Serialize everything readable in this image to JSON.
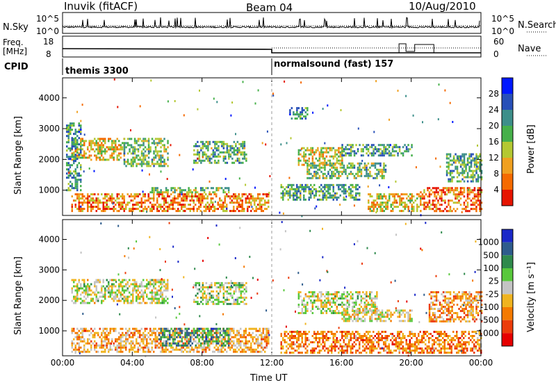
{
  "header": {
    "station": "Inuvik (fitACF)",
    "beam": "Beam 04",
    "date": "10/Aug/2010"
  },
  "strip_panels": {
    "nsky_label": "N.Sky",
    "nsky_ticks": [
      "10^5",
      "10^0"
    ],
    "nsearch_label": "N.Search",
    "nsearch_ticks": [
      "10^5",
      "10^0"
    ],
    "freq_label_1": "Freq.",
    "freq_label_2": "[MHz]",
    "freq_ticks": [
      "18",
      "8"
    ],
    "nave_label": "Nave",
    "nave_ticks": [
      "60",
      "0"
    ],
    "cpid_label": "CPID",
    "cpid_modes": [
      {
        "name": "themis 3300",
        "start_hour": 0
      },
      {
        "name": "normalsound (fast) 157",
        "start_hour": 12
      }
    ]
  },
  "chart_data": [
    {
      "type": "heatmap",
      "title": "",
      "quantity": "power",
      "xlabel": "",
      "ylabel": "Slant Range [km]",
      "xlim_hours": [
        0,
        24
      ],
      "ylim_km": [
        180,
        4650
      ],
      "y_ticks": [
        "1000",
        "2000",
        "3000",
        "4000"
      ],
      "x_ticks": [
        "00:00",
        "04:00",
        "08:00",
        "12:00",
        "16:00",
        "20:00",
        "00:00"
      ],
      "colorbar": {
        "label": "Power [dB]",
        "ticks": [
          "4",
          "8",
          "12",
          "16",
          "20",
          "24",
          "28"
        ],
        "colors": [
          "#0018ff",
          "#2850b8",
          "#3d8f8a",
          "#46b04a",
          "#b4c832",
          "#f0a020",
          "#f56a00",
          "#e61400"
        ]
      },
      "echo_regions": [
        {
          "t0": 0.5,
          "t1": 3.5,
          "r0": 2000,
          "r1": 2700,
          "level": 0.65
        },
        {
          "t0": 3.5,
          "t1": 6.0,
          "r0": 1800,
          "r1": 2700,
          "level": 0.45
        },
        {
          "t0": 0.2,
          "t1": 1.0,
          "r0": 1000,
          "r1": 3200,
          "level": 0.3
        },
        {
          "t0": 0.5,
          "t1": 11.8,
          "r0": 300,
          "r1": 900,
          "level": 0.8
        },
        {
          "t0": 5.0,
          "t1": 9.5,
          "r0": 900,
          "r1": 1100,
          "level": 0.45
        },
        {
          "t0": 7.5,
          "t1": 10.5,
          "r0": 1900,
          "r1": 2600,
          "level": 0.4
        },
        {
          "t0": 13.5,
          "t1": 16.0,
          "r0": 1800,
          "r1": 2400,
          "level": 0.6
        },
        {
          "t0": 14.0,
          "t1": 18.5,
          "r0": 1400,
          "r1": 1900,
          "level": 0.45
        },
        {
          "t0": 16.0,
          "t1": 20.0,
          "r0": 2100,
          "r1": 2500,
          "level": 0.35
        },
        {
          "t0": 12.5,
          "t1": 17.0,
          "r0": 700,
          "r1": 1200,
          "level": 0.4
        },
        {
          "t0": 17.5,
          "t1": 20.5,
          "r0": 300,
          "r1": 900,
          "level": 0.65
        },
        {
          "t0": 20.5,
          "t1": 24.0,
          "r0": 300,
          "r1": 1100,
          "level": 0.85
        },
        {
          "t0": 22.0,
          "t1": 24.0,
          "r0": 1300,
          "r1": 2200,
          "level": 0.4
        },
        {
          "t0": 13.0,
          "t1": 14.0,
          "r0": 3300,
          "r1": 3700,
          "level": 0.3
        }
      ]
    },
    {
      "type": "heatmap",
      "title": "",
      "quantity": "velocity",
      "xlabel": "Time UT",
      "ylabel": "Slant Range [km]",
      "xlim_hours": [
        0,
        24
      ],
      "ylim_km": [
        180,
        4650
      ],
      "y_ticks": [
        "1000",
        "2000",
        "3000",
        "4000"
      ],
      "x_ticks": [
        "00:00",
        "04:00",
        "08:00",
        "12:00",
        "16:00",
        "20:00",
        "00:00"
      ],
      "colorbar": {
        "label": "Velocity [m s⁻¹]",
        "ticks": [
          "1000",
          "500",
          "100",
          "25",
          "-25",
          "-100",
          "-500",
          "-1000"
        ],
        "colors": [
          "#1a28c8",
          "#2e5c8c",
          "#2f8a4c",
          "#58c83c",
          "#c4c4c4",
          "#f0b420",
          "#f57a00",
          "#ec3c0a",
          "#e60000"
        ]
      },
      "echo_regions": [
        {
          "t0": 0.5,
          "t1": 6.0,
          "r0": 1900,
          "r1": 2700,
          "level": 0.5
        },
        {
          "t0": 0.5,
          "t1": 11.8,
          "r0": 300,
          "r1": 1100,
          "level": 0.65
        },
        {
          "t0": 5.5,
          "t1": 9.5,
          "r0": 500,
          "r1": 1100,
          "level": 0.25
        },
        {
          "t0": 7.5,
          "t1": 10.5,
          "r0": 1900,
          "r1": 2600,
          "level": 0.45
        },
        {
          "t0": 13.5,
          "t1": 18.0,
          "r0": 1600,
          "r1": 2300,
          "level": 0.5
        },
        {
          "t0": 16.0,
          "t1": 20.0,
          "r0": 1300,
          "r1": 1700,
          "level": 0.55
        },
        {
          "t0": 12.5,
          "t1": 24.0,
          "r0": 300,
          "r1": 1000,
          "level": 0.75
        },
        {
          "t0": 21.0,
          "t1": 24.0,
          "r0": 1300,
          "r1": 2300,
          "level": 0.7
        }
      ]
    }
  ]
}
